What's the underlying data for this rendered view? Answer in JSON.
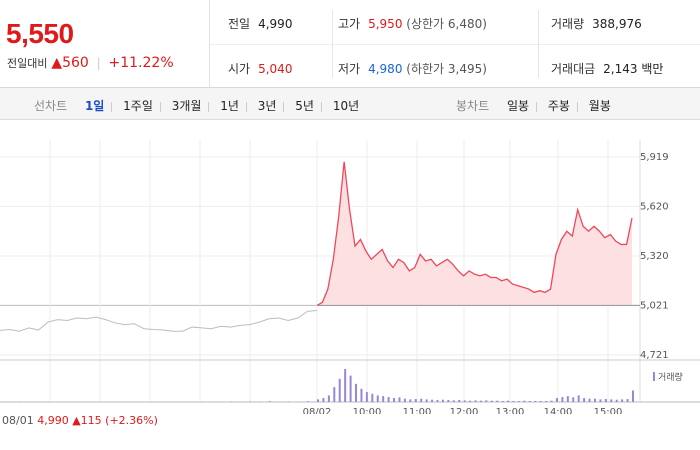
{
  "quote": {
    "price": "5,550",
    "change_label": "전일대비",
    "change_value": "▲560",
    "change_pct": "+11.22%"
  },
  "stats": {
    "prev_close": {
      "label": "전일",
      "value": "4,990"
    },
    "open": {
      "label": "시가",
      "value": "5,040"
    },
    "high": {
      "label": "고가",
      "value": "5,950",
      "limit": "(상한가 6,480)"
    },
    "low": {
      "label": "저가",
      "value": "4,980",
      "limit": "(하한가 3,495)"
    },
    "volume": {
      "label": "거래량",
      "value": "388,976"
    },
    "amount": {
      "label": "거래대금",
      "value": "2,143",
      "unit": "백만"
    }
  },
  "line_tabs": {
    "title": "선차트",
    "items": [
      "1일",
      "1주일",
      "3개월",
      "1년",
      "3년",
      "5년",
      "10년"
    ],
    "active": "1일"
  },
  "candle_tabs": {
    "title": "봉차트",
    "items": [
      "일봉",
      "주봉",
      "월봉"
    ]
  },
  "prev_day": {
    "date": "08/01",
    "close": "4,990",
    "change": "▲115",
    "pct": "(+2.36%)"
  },
  "colors": {
    "up": "#e0191b",
    "down": "#1a64d6",
    "line": "#f0475a",
    "fill": "#fde0e2",
    "prev_line": "#bdbdbd",
    "volume": "#9a86d8"
  },
  "chart_data": {
    "type": "line",
    "ylim": [
      4721,
      5919
    ],
    "y_ticks": [
      "5,919",
      "5,620",
      "5,320",
      "5,021",
      "4,721"
    ],
    "baseline": 5021,
    "x_tick_labels": [
      "08/02",
      "10:00",
      "11:00",
      "12:00",
      "13:00",
      "14:00",
      "15:00"
    ],
    "volume_legend": "거래량",
    "prev_day_series": {
      "name": "08/01",
      "values": [
        4870,
        4875,
        4865,
        4885,
        4872,
        4920,
        4935,
        4930,
        4945,
        4940,
        4950,
        4935,
        4915,
        4905,
        4910,
        4880,
        4875,
        4872,
        4865,
        4865,
        4890,
        4885,
        4880,
        4895,
        4890,
        4900,
        4905,
        4920,
        4940,
        4945,
        4930,
        4945,
        4985,
        4990
      ]
    },
    "today_series": {
      "name": "08/02",
      "values": [
        5021,
        5040,
        5120,
        5300,
        5560,
        5890,
        5600,
        5380,
        5420,
        5350,
        5300,
        5330,
        5360,
        5290,
        5250,
        5300,
        5280,
        5230,
        5250,
        5330,
        5290,
        5300,
        5260,
        5280,
        5300,
        5270,
        5230,
        5200,
        5230,
        5210,
        5200,
        5210,
        5190,
        5190,
        5170,
        5180,
        5150,
        5140,
        5130,
        5120,
        5100,
        5110,
        5100,
        5120,
        5330,
        5420,
        5470,
        5440,
        5600,
        5500,
        5470,
        5500,
        5470,
        5430,
        5450,
        5410,
        5390,
        5390,
        5550
      ]
    },
    "volume_prev": [
      0,
      0,
      1,
      0,
      1,
      0,
      1,
      0,
      0,
      1,
      0,
      1,
      0,
      0,
      1,
      0,
      1,
      0,
      0,
      1,
      0,
      1,
      0,
      0,
      2,
      1,
      2,
      1,
      3,
      1,
      2,
      1,
      3,
      4
    ],
    "volume_today": [
      8,
      12,
      20,
      45,
      70,
      100,
      80,
      55,
      40,
      30,
      25,
      20,
      18,
      15,
      12,
      14,
      10,
      8,
      9,
      10,
      8,
      7,
      6,
      7,
      6,
      5,
      6,
      5,
      4,
      5,
      4,
      5,
      4,
      4,
      3,
      4,
      3,
      3,
      4,
      3,
      3,
      3,
      3,
      4,
      12,
      15,
      18,
      14,
      20,
      12,
      10,
      10,
      8,
      9,
      8,
      7,
      8,
      9,
      35
    ]
  }
}
